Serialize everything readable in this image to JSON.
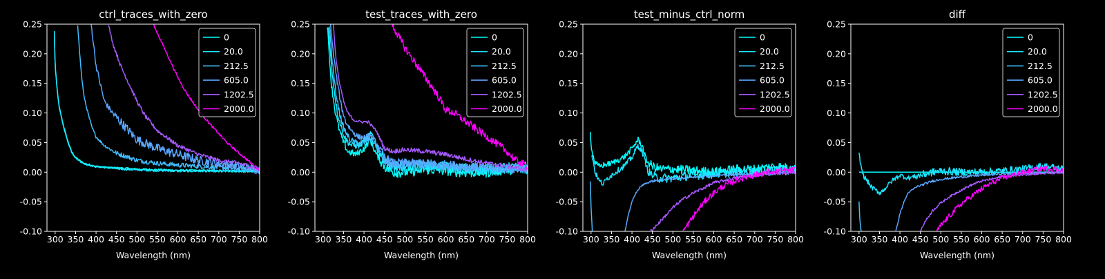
{
  "figure": {
    "background": "#000000",
    "foreground": "#ffffff"
  },
  "legend_labels": [
    "0",
    "20.0",
    "212.5",
    "605.0",
    "1202.5",
    "2000.0"
  ],
  "series_colors": [
    "#00ffff",
    "#1ae5ff",
    "#40bfff",
    "#59a6ff",
    "#a659ff",
    "#ff00ff"
  ],
  "chart_data": [
    {
      "type": "line",
      "title": "ctrl_traces_with_zero",
      "xlabel": "Wavelength (nm)",
      "ylabel": "",
      "xlim": [
        280,
        800
      ],
      "ylim": [
        -0.1,
        0.25
      ],
      "xticks": [
        300,
        350,
        400,
        450,
        500,
        550,
        600,
        650,
        700,
        750,
        800
      ],
      "yticks": [
        -0.1,
        -0.05,
        0.0,
        0.05,
        0.1,
        0.15,
        0.2,
        0.25
      ],
      "grid": false,
      "legend": "top-right",
      "series": [
        {
          "name": "0",
          "color": "#00ffff",
          "noise": 0.0015,
          "x": [
            298,
            300,
            305,
            310,
            320,
            330,
            340,
            350,
            370,
            400,
            450,
            500,
            600,
            700,
            800
          ],
          "y": [
            0.238,
            0.18,
            0.14,
            0.11,
            0.08,
            0.055,
            0.035,
            0.025,
            0.015,
            0.01,
            0.007,
            0.005,
            0.003,
            0.002,
            0.002
          ]
        },
        {
          "name": "20.0",
          "color": "#1ae5ff",
          "noise": 0.0015,
          "x": [
            298,
            300,
            305,
            310,
            320,
            330,
            340,
            350,
            370,
            400,
            450,
            500,
            600,
            700,
            800
          ],
          "y": [
            0.236,
            0.178,
            0.138,
            0.108,
            0.078,
            0.053,
            0.034,
            0.024,
            0.014,
            0.009,
            0.006,
            0.004,
            0.002,
            0.002,
            0.001
          ]
        },
        {
          "name": "212.5",
          "color": "#40bfff",
          "noise": 0.003,
          "x": [
            355,
            360,
            365,
            370,
            380,
            390,
            400,
            420,
            450,
            480,
            500,
            550,
            600,
            700,
            800
          ],
          "y": [
            0.25,
            0.2,
            0.16,
            0.13,
            0.1,
            0.075,
            0.06,
            0.045,
            0.032,
            0.025,
            0.02,
            0.015,
            0.012,
            0.008,
            0.004
          ]
        },
        {
          "name": "605.0",
          "color": "#59a6ff",
          "noise": 0.006,
          "x": [
            388,
            395,
            400,
            410,
            420,
            440,
            460,
            480,
            500,
            550,
            600,
            650,
            700,
            750,
            800
          ],
          "y": [
            0.25,
            0.21,
            0.18,
            0.15,
            0.12,
            0.1,
            0.085,
            0.07,
            0.055,
            0.04,
            0.03,
            0.02,
            0.015,
            0.01,
            0.004
          ]
        },
        {
          "name": "1202.5",
          "color": "#a659ff",
          "noise": 0.0025,
          "x": [
            430,
            440,
            450,
            460,
            480,
            500,
            520,
            550,
            600,
            650,
            700,
            750,
            800
          ],
          "y": [
            0.25,
            0.22,
            0.2,
            0.18,
            0.15,
            0.12,
            0.095,
            0.07,
            0.045,
            0.03,
            0.02,
            0.015,
            0.005
          ]
        },
        {
          "name": "2000.0",
          "color": "#ff00ff",
          "noise": 0.0015,
          "x": [
            540,
            560,
            580,
            600,
            620,
            650,
            680,
            700,
            720,
            750,
            780,
            800
          ],
          "y": [
            0.25,
            0.22,
            0.19,
            0.16,
            0.135,
            0.105,
            0.08,
            0.065,
            0.05,
            0.032,
            0.015,
            0.003
          ]
        }
      ]
    },
    {
      "type": "line",
      "title": "test_traces_with_zero",
      "xlabel": "Wavelength (nm)",
      "ylabel": "",
      "xlim": [
        280,
        800
      ],
      "ylim": [
        -0.1,
        0.25
      ],
      "xticks": [
        300,
        350,
        400,
        450,
        500,
        550,
        600,
        650,
        700,
        750,
        800
      ],
      "yticks": [
        -0.1,
        -0.05,
        0.0,
        0.05,
        0.1,
        0.15,
        0.2,
        0.25
      ],
      "grid": false,
      "legend": "top-right",
      "series": [
        {
          "name": "0",
          "color": "#00ffff",
          "noise": 0.007,
          "x": [
            310,
            315,
            320,
            330,
            340,
            350,
            360,
            380,
            400,
            415,
            430,
            450,
            470,
            500,
            550,
            600,
            650,
            700,
            750,
            800
          ],
          "y": [
            0.25,
            0.2,
            0.15,
            0.1,
            0.07,
            0.05,
            0.035,
            0.03,
            0.04,
            0.055,
            0.03,
            0.01,
            0.0,
            0.0,
            0.005,
            0.003,
            0.0,
            0.0,
            0.005,
            0.004
          ]
        },
        {
          "name": "20.0",
          "color": "#1ae5ff",
          "noise": 0.007,
          "x": [
            312,
            318,
            325,
            335,
            345,
            355,
            370,
            390,
            410,
            420,
            435,
            455,
            480,
            520,
            580,
            650,
            720,
            800
          ],
          "y": [
            0.25,
            0.2,
            0.15,
            0.1,
            0.075,
            0.055,
            0.045,
            0.045,
            0.06,
            0.065,
            0.035,
            0.02,
            0.005,
            0.008,
            0.01,
            0.005,
            0.005,
            0.01
          ]
        },
        {
          "name": "212.5",
          "color": "#40bfff",
          "noise": 0.006,
          "x": [
            315,
            322,
            330,
            340,
            350,
            365,
            380,
            400,
            415,
            430,
            450,
            470,
            500,
            550,
            600,
            650,
            700,
            750,
            800
          ],
          "y": [
            0.25,
            0.19,
            0.14,
            0.1,
            0.075,
            0.055,
            0.05,
            0.05,
            0.058,
            0.045,
            0.018,
            0.01,
            0.012,
            0.015,
            0.01,
            0.008,
            0.006,
            0.005,
            0.008
          ]
        },
        {
          "name": "605.0",
          "color": "#59a6ff",
          "noise": 0.006,
          "x": [
            318,
            325,
            335,
            345,
            355,
            370,
            385,
            400,
            415,
            430,
            450,
            470,
            500,
            550,
            600,
            650,
            700,
            750,
            800
          ],
          "y": [
            0.25,
            0.2,
            0.15,
            0.11,
            0.085,
            0.07,
            0.06,
            0.058,
            0.062,
            0.05,
            0.025,
            0.015,
            0.015,
            0.014,
            0.012,
            0.01,
            0.008,
            0.006,
            0.006
          ]
        },
        {
          "name": "1202.5",
          "color": "#a659ff",
          "noise": 0.003,
          "x": [
            325,
            330,
            340,
            350,
            360,
            375,
            390,
            410,
            430,
            450,
            470,
            500,
            550,
            600,
            650,
            700,
            750,
            800
          ],
          "y": [
            0.25,
            0.2,
            0.15,
            0.12,
            0.1,
            0.088,
            0.085,
            0.085,
            0.07,
            0.04,
            0.035,
            0.038,
            0.035,
            0.03,
            0.022,
            0.015,
            0.01,
            0.004
          ]
        },
        {
          "name": "2000.0",
          "color": "#ff00ff",
          "noise": 0.005,
          "x": [
            468,
            480,
            500,
            520,
            550,
            580,
            600,
            620,
            650,
            680,
            700,
            720,
            750,
            770,
            800
          ],
          "y": [
            0.25,
            0.235,
            0.21,
            0.19,
            0.16,
            0.13,
            0.105,
            0.1,
            0.085,
            0.07,
            0.06,
            0.05,
            0.035,
            0.02,
            0.01
          ]
        }
      ]
    },
    {
      "type": "line",
      "title": "test_minus_ctrl_norm",
      "xlabel": "Wavelength (nm)",
      "ylabel": "",
      "xlim": [
        280,
        800
      ],
      "ylim": [
        -0.1,
        0.25
      ],
      "xticks": [
        300,
        350,
        400,
        450,
        500,
        550,
        600,
        650,
        700,
        750,
        800
      ],
      "yticks": [
        -0.1,
        -0.05,
        0.0,
        0.05,
        0.1,
        0.15,
        0.2,
        0.25
      ],
      "grid": false,
      "legend": "top-right",
      "series": [
        {
          "name": "0",
          "color": "#00ffff",
          "noise": 0.006,
          "x": [
            298,
            302,
            310,
            320,
            330,
            350,
            380,
            400,
            415,
            425,
            435,
            450,
            470,
            500,
            550,
            600,
            650,
            700,
            750,
            800
          ],
          "y": [
            0.066,
            0.035,
            0.015,
            0.01,
            0.012,
            0.015,
            0.025,
            0.04,
            0.055,
            0.045,
            0.02,
            0.01,
            0.005,
            0.005,
            0.003,
            0.0,
            0.005,
            0.005,
            0.01,
            0.005
          ]
        },
        {
          "name": "20.0",
          "color": "#1ae5ff",
          "noise": 0.006,
          "x": [
            302,
            310,
            320,
            330,
            340,
            350,
            380,
            400,
            415,
            425,
            440,
            460,
            500,
            550,
            600,
            650,
            700,
            750,
            800
          ],
          "y": [
            0.03,
            0.0,
            -0.015,
            -0.02,
            -0.01,
            -0.005,
            0.01,
            0.025,
            0.045,
            0.035,
            0.0,
            -0.01,
            -0.01,
            -0.005,
            -0.003,
            0.0,
            0.0,
            0.002,
            0.004
          ]
        },
        {
          "name": "212.5",
          "color": "#40bfff",
          "noise": 0.002,
          "x": [
            298,
            300,
            303
          ],
          "y": [
            -0.015,
            -0.06,
            -0.1
          ]
        },
        {
          "name": "605.0",
          "color": "#59a6ff",
          "noise": 0.0015,
          "x": [
            383,
            390,
            400,
            410,
            420,
            430,
            450,
            480,
            520,
            560,
            600,
            650,
            700,
            750,
            800
          ],
          "y": [
            -0.1,
            -0.075,
            -0.05,
            -0.035,
            -0.025,
            -0.02,
            -0.015,
            -0.012,
            -0.01,
            -0.008,
            -0.006,
            -0.004,
            -0.003,
            -0.002,
            0.0
          ]
        },
        {
          "name": "1202.5",
          "color": "#a659ff",
          "noise": 0.002,
          "x": [
            445,
            460,
            480,
            500,
            520,
            550,
            580,
            600,
            650,
            700,
            750,
            800
          ],
          "y": [
            -0.1,
            -0.09,
            -0.075,
            -0.06,
            -0.048,
            -0.035,
            -0.025,
            -0.018,
            -0.01,
            -0.005,
            -0.002,
            0.0
          ]
        },
        {
          "name": "2000.0",
          "color": "#ff00ff",
          "noise": 0.004,
          "x": [
            525,
            540,
            560,
            580,
            600,
            620,
            650,
            680,
            700,
            730,
            760,
            800
          ],
          "y": [
            -0.1,
            -0.085,
            -0.065,
            -0.048,
            -0.035,
            -0.025,
            -0.015,
            -0.008,
            -0.005,
            0.0,
            0.002,
            0.004
          ]
        }
      ]
    },
    {
      "type": "line",
      "title": "diff",
      "xlabel": "Wavelength (nm)",
      "ylabel": "",
      "xlim": [
        280,
        800
      ],
      "ylim": [
        -0.1,
        0.25
      ],
      "xticks": [
        300,
        350,
        400,
        450,
        500,
        550,
        600,
        650,
        700,
        750,
        800
      ],
      "yticks": [
        -0.1,
        -0.05,
        0.0,
        0.05,
        0.1,
        0.15,
        0.2,
        0.25
      ],
      "grid": false,
      "legend": "top-right",
      "series": [
        {
          "name": "0",
          "color": "#00ffff",
          "noise": 0.0,
          "x": [
            300,
            800
          ],
          "y": [
            0.0,
            0.0
          ]
        },
        {
          "name": "20.0",
          "color": "#1ae5ff",
          "noise": 0.005,
          "x": [
            300,
            305,
            310,
            320,
            330,
            340,
            350,
            360,
            380,
            400,
            420,
            450,
            480,
            500,
            550,
            600,
            650,
            700,
            750,
            800
          ],
          "y": [
            0.03,
            0.01,
            -0.005,
            -0.015,
            -0.025,
            -0.03,
            -0.035,
            -0.03,
            -0.015,
            -0.005,
            -0.01,
            -0.005,
            0.0,
            0.002,
            0.0,
            0.0,
            0.002,
            0.005,
            0.01,
            0.005
          ]
        },
        {
          "name": "212.5",
          "color": "#40bfff",
          "noise": 0.002,
          "x": [
            300,
            302,
            305
          ],
          "y": [
            -0.05,
            -0.08,
            -0.1
          ]
        },
        {
          "name": "605.0",
          "color": "#59a6ff",
          "noise": 0.0015,
          "x": [
            390,
            400,
            410,
            420,
            440,
            460,
            480,
            500,
            550,
            600,
            650,
            700,
            750,
            800
          ],
          "y": [
            -0.1,
            -0.07,
            -0.05,
            -0.035,
            -0.025,
            -0.02,
            -0.015,
            -0.012,
            -0.008,
            -0.005,
            -0.003,
            -0.002,
            -0.001,
            0.0
          ]
        },
        {
          "name": "1202.5",
          "color": "#a659ff",
          "noise": 0.0015,
          "x": [
            450,
            460,
            480,
            500,
            520,
            550,
            580,
            600,
            650,
            700,
            750,
            800
          ],
          "y": [
            -0.1,
            -0.085,
            -0.065,
            -0.052,
            -0.042,
            -0.03,
            -0.02,
            -0.015,
            -0.008,
            -0.004,
            -0.002,
            -0.001
          ]
        },
        {
          "name": "2000.0",
          "color": "#ff00ff",
          "noise": 0.0035,
          "x": [
            490,
            500,
            520,
            540,
            560,
            580,
            600,
            620,
            650,
            680,
            700,
            730,
            760,
            800
          ],
          "y": [
            -0.1,
            -0.09,
            -0.075,
            -0.06,
            -0.048,
            -0.038,
            -0.028,
            -0.02,
            -0.01,
            -0.004,
            0.0,
            0.004,
            0.006,
            0.004
          ]
        }
      ]
    }
  ]
}
